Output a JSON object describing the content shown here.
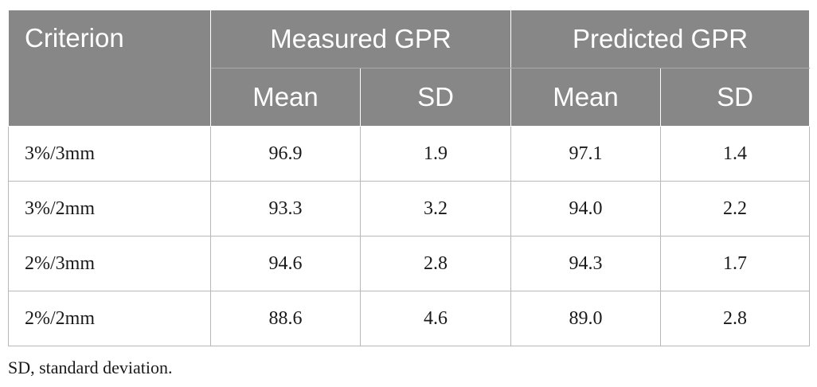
{
  "table": {
    "header": {
      "criterion": "Criterion",
      "groups": [
        "Measured GPR",
        "Predicted GPR"
      ],
      "subheaders": [
        "Mean",
        "SD",
        "Mean",
        "SD"
      ]
    },
    "rows": [
      {
        "criterion": "3%/3mm",
        "measured_mean": "96.9",
        "measured_sd": "1.9",
        "predicted_mean": "97.1",
        "predicted_sd": "1.4"
      },
      {
        "criterion": "3%/2mm",
        "measured_mean": "93.3",
        "measured_sd": "3.2",
        "predicted_mean": "94.0",
        "predicted_sd": "2.2"
      },
      {
        "criterion": "2%/3mm",
        "measured_mean": "94.6",
        "measured_sd": "2.8",
        "predicted_mean": "94.3",
        "predicted_sd": "1.7"
      },
      {
        "criterion": "2%/2mm",
        "measured_mean": "88.6",
        "measured_sd": "4.6",
        "predicted_mean": "89.0",
        "predicted_sd": "2.8"
      }
    ]
  },
  "footnote": "SD, standard deviation."
}
